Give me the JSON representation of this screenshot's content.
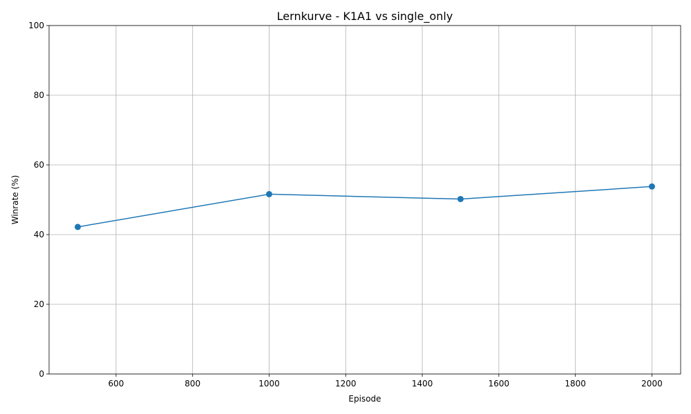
{
  "chart_data": {
    "type": "line",
    "title": "Lernkurve - K1A1 vs single_only",
    "xlabel": "Episode",
    "ylabel": "Winrate (%)",
    "xlim": [
      425,
      2075
    ],
    "ylim": [
      0,
      100
    ],
    "xticks": [
      600,
      800,
      1000,
      1200,
      1400,
      1600,
      1800,
      2000
    ],
    "yticks": [
      0,
      20,
      40,
      60,
      80,
      100
    ],
    "grid": true,
    "series": [
      {
        "name": "Winrate",
        "color": "#1f77b4",
        "x": [
          500,
          1000,
          1500,
          2000
        ],
        "values": [
          42.2,
          51.6,
          50.2,
          53.8
        ]
      }
    ]
  }
}
